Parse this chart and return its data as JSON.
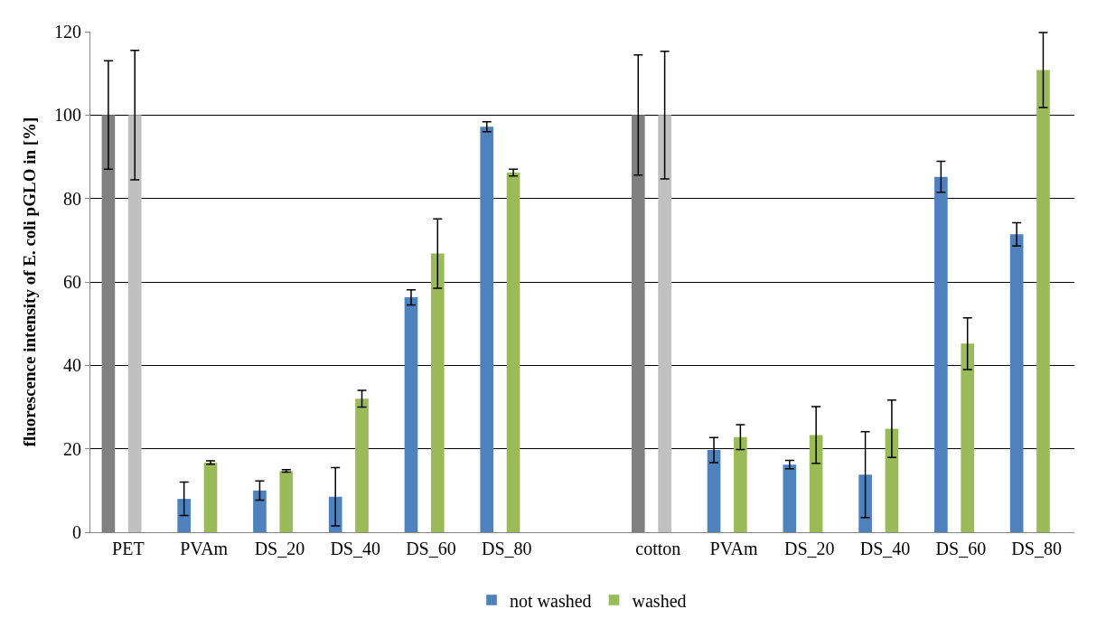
{
  "chart_data": {
    "type": "bar",
    "ylabel": "fluorescence intensity of E. coli pGLO in [%]",
    "categories": [
      "PET",
      "PVAm",
      "DS_20",
      "DS_40",
      "DS_60",
      "DS_80",
      null,
      "cotton",
      "PVAm",
      "DS_20",
      "DS_40",
      "DS_60",
      "DS_80"
    ],
    "series": [
      {
        "name": "not washed",
        "color": "#4f81bd",
        "colors": [
          "#808080",
          "#4f81bd",
          "#4f81bd",
          "#4f81bd",
          "#4f81bd",
          "#4f81bd",
          "#4f81bd",
          "#808080",
          "#4f81bd",
          "#4f81bd",
          "#4f81bd",
          "#4f81bd",
          "#4f81bd"
        ],
        "values": [
          100,
          8,
          10,
          8.5,
          56.3,
          97.2,
          null,
          100,
          19.7,
          16.2,
          13.8,
          85.2,
          71.4
        ],
        "errors": [
          13,
          4,
          2.3,
          7,
          1.8,
          1.2,
          null,
          14.4,
          3,
          1,
          10.3,
          3.7,
          2.8
        ]
      },
      {
        "name": "washed",
        "color": "#9bbb59",
        "colors": [
          "#c0c0c0",
          "#9bbb59",
          "#9bbb59",
          "#9bbb59",
          "#9bbb59",
          "#9bbb59",
          "#9bbb59",
          "#c0c0c0",
          "#9bbb59",
          "#9bbb59",
          "#9bbb59",
          "#9bbb59",
          "#9bbb59"
        ],
        "values": [
          100,
          16.7,
          14.7,
          32,
          66.8,
          86.2,
          null,
          100,
          22.8,
          23.3,
          24.8,
          45.2,
          110.8
        ],
        "errors": [
          15.5,
          0.4,
          0.3,
          2,
          8.3,
          0.8,
          null,
          15.3,
          3,
          6.8,
          6.9,
          6.2,
          9
        ]
      }
    ],
    "ylim": [
      0,
      120
    ],
    "yticks": [
      0,
      20,
      40,
      60,
      80,
      100,
      120
    ],
    "grid": "y",
    "legend": "bottom"
  }
}
